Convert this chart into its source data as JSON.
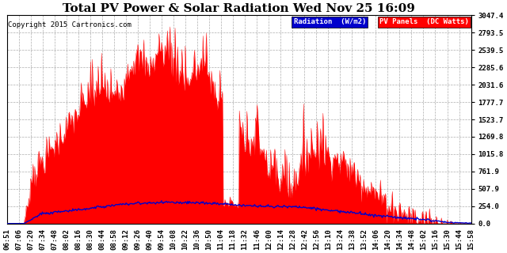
{
  "title": "Total PV Power & Solar Radiation Wed Nov 25 16:09",
  "copyright": "Copyright 2015 Cartronics.com",
  "ylim": [
    0.0,
    3047.4
  ],
  "yticks": [
    0.0,
    254.0,
    507.9,
    761.9,
    1015.8,
    1269.8,
    1523.7,
    1777.7,
    2031.6,
    2285.6,
    2539.5,
    2793.5,
    3047.4
  ],
  "background_color": "#ffffff",
  "plot_bg_color": "#ffffff",
  "grid_color": "#999999",
  "pv_color": "#ff0000",
  "radiation_color": "#0000cc",
  "legend_radiation_bg": "#0000cc",
  "legend_pv_bg": "#ff0000",
  "title_fontsize": 11,
  "tick_fontsize": 6.5,
  "x_tick_labels": [
    "06:51",
    "07:06",
    "07:20",
    "07:34",
    "07:48",
    "08:02",
    "08:16",
    "08:30",
    "08:44",
    "08:58",
    "09:12",
    "09:26",
    "09:40",
    "09:54",
    "10:08",
    "10:22",
    "10:36",
    "10:50",
    "11:04",
    "11:18",
    "11:32",
    "11:46",
    "12:00",
    "12:14",
    "12:28",
    "12:42",
    "12:56",
    "13:10",
    "13:24",
    "13:38",
    "13:52",
    "14:06",
    "14:20",
    "14:34",
    "14:48",
    "15:02",
    "15:16",
    "15:30",
    "15:44",
    "15:58"
  ]
}
